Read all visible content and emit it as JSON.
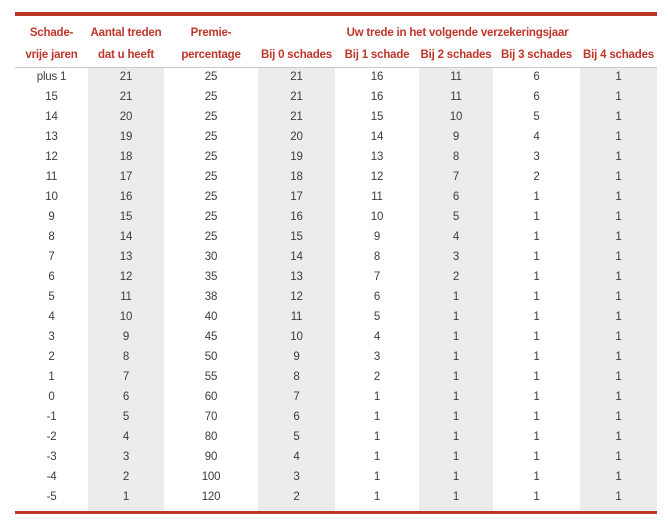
{
  "colors": {
    "red": "#bf362b",
    "stripe": "#ececec",
    "body_text": "#3d3d3d",
    "divider": "#c9c9c9"
  },
  "table": {
    "group_header": "Uw trede in het volgende verzekeringsjaar",
    "headers": [
      {
        "line1": "Schade-",
        "line2": "vrije jaren"
      },
      {
        "line1": "Aantal treden",
        "line2": "dat u heeft"
      },
      {
        "line1": "Premie-",
        "line2": "percentage"
      },
      {
        "line1": "",
        "line2": "Bij 0 schades"
      },
      {
        "line1": "",
        "line2": "Bij 1 schade"
      },
      {
        "line1": "",
        "line2": "Bij 2 schades"
      },
      {
        "line1": "",
        "line2": "Bij 3 schades"
      },
      {
        "line1": "",
        "line2": "Bij 4 schades"
      }
    ],
    "rows": [
      [
        "plus 1",
        "21",
        "25",
        "21",
        "16",
        "11",
        "6",
        "1"
      ],
      [
        "15",
        "21",
        "25",
        "21",
        "16",
        "11",
        "6",
        "1"
      ],
      [
        "14",
        "20",
        "25",
        "21",
        "15",
        "10",
        "5",
        "1"
      ],
      [
        "13",
        "19",
        "25",
        "20",
        "14",
        "9",
        "4",
        "1"
      ],
      [
        "12",
        "18",
        "25",
        "19",
        "13",
        "8",
        "3",
        "1"
      ],
      [
        "11",
        "17",
        "25",
        "18",
        "12",
        "7",
        "2",
        "1"
      ],
      [
        "10",
        "16",
        "25",
        "17",
        "11",
        "6",
        "1",
        "1"
      ],
      [
        "9",
        "15",
        "25",
        "16",
        "10",
        "5",
        "1",
        "1"
      ],
      [
        "8",
        "14",
        "25",
        "15",
        "9",
        "4",
        "1",
        "1"
      ],
      [
        "7",
        "13",
        "30",
        "14",
        "8",
        "3",
        "1",
        "1"
      ],
      [
        "6",
        "12",
        "35",
        "13",
        "7",
        "2",
        "1",
        "1"
      ],
      [
        "5",
        "11",
        "38",
        "12",
        "6",
        "1",
        "1",
        "1"
      ],
      [
        "4",
        "10",
        "40",
        "11",
        "5",
        "1",
        "1",
        "1"
      ],
      [
        "3",
        "9",
        "45",
        "10",
        "4",
        "1",
        "1",
        "1"
      ],
      [
        "2",
        "8",
        "50",
        "9",
        "3",
        "1",
        "1",
        "1"
      ],
      [
        "1",
        "7",
        "55",
        "8",
        "2",
        "1",
        "1",
        "1"
      ],
      [
        "0",
        "6",
        "60",
        "7",
        "1",
        "1",
        "1",
        "1"
      ],
      [
        "-1",
        "5",
        "70",
        "6",
        "1",
        "1",
        "1",
        "1"
      ],
      [
        "-2",
        "4",
        "80",
        "5",
        "1",
        "1",
        "1",
        "1"
      ],
      [
        "-3",
        "3",
        "90",
        "4",
        "1",
        "1",
        "1",
        "1"
      ],
      [
        "-4",
        "2",
        "100",
        "3",
        "1",
        "1",
        "1",
        "1"
      ],
      [
        "-5",
        "1",
        "120",
        "2",
        "1",
        "1",
        "1",
        "1"
      ]
    ]
  }
}
